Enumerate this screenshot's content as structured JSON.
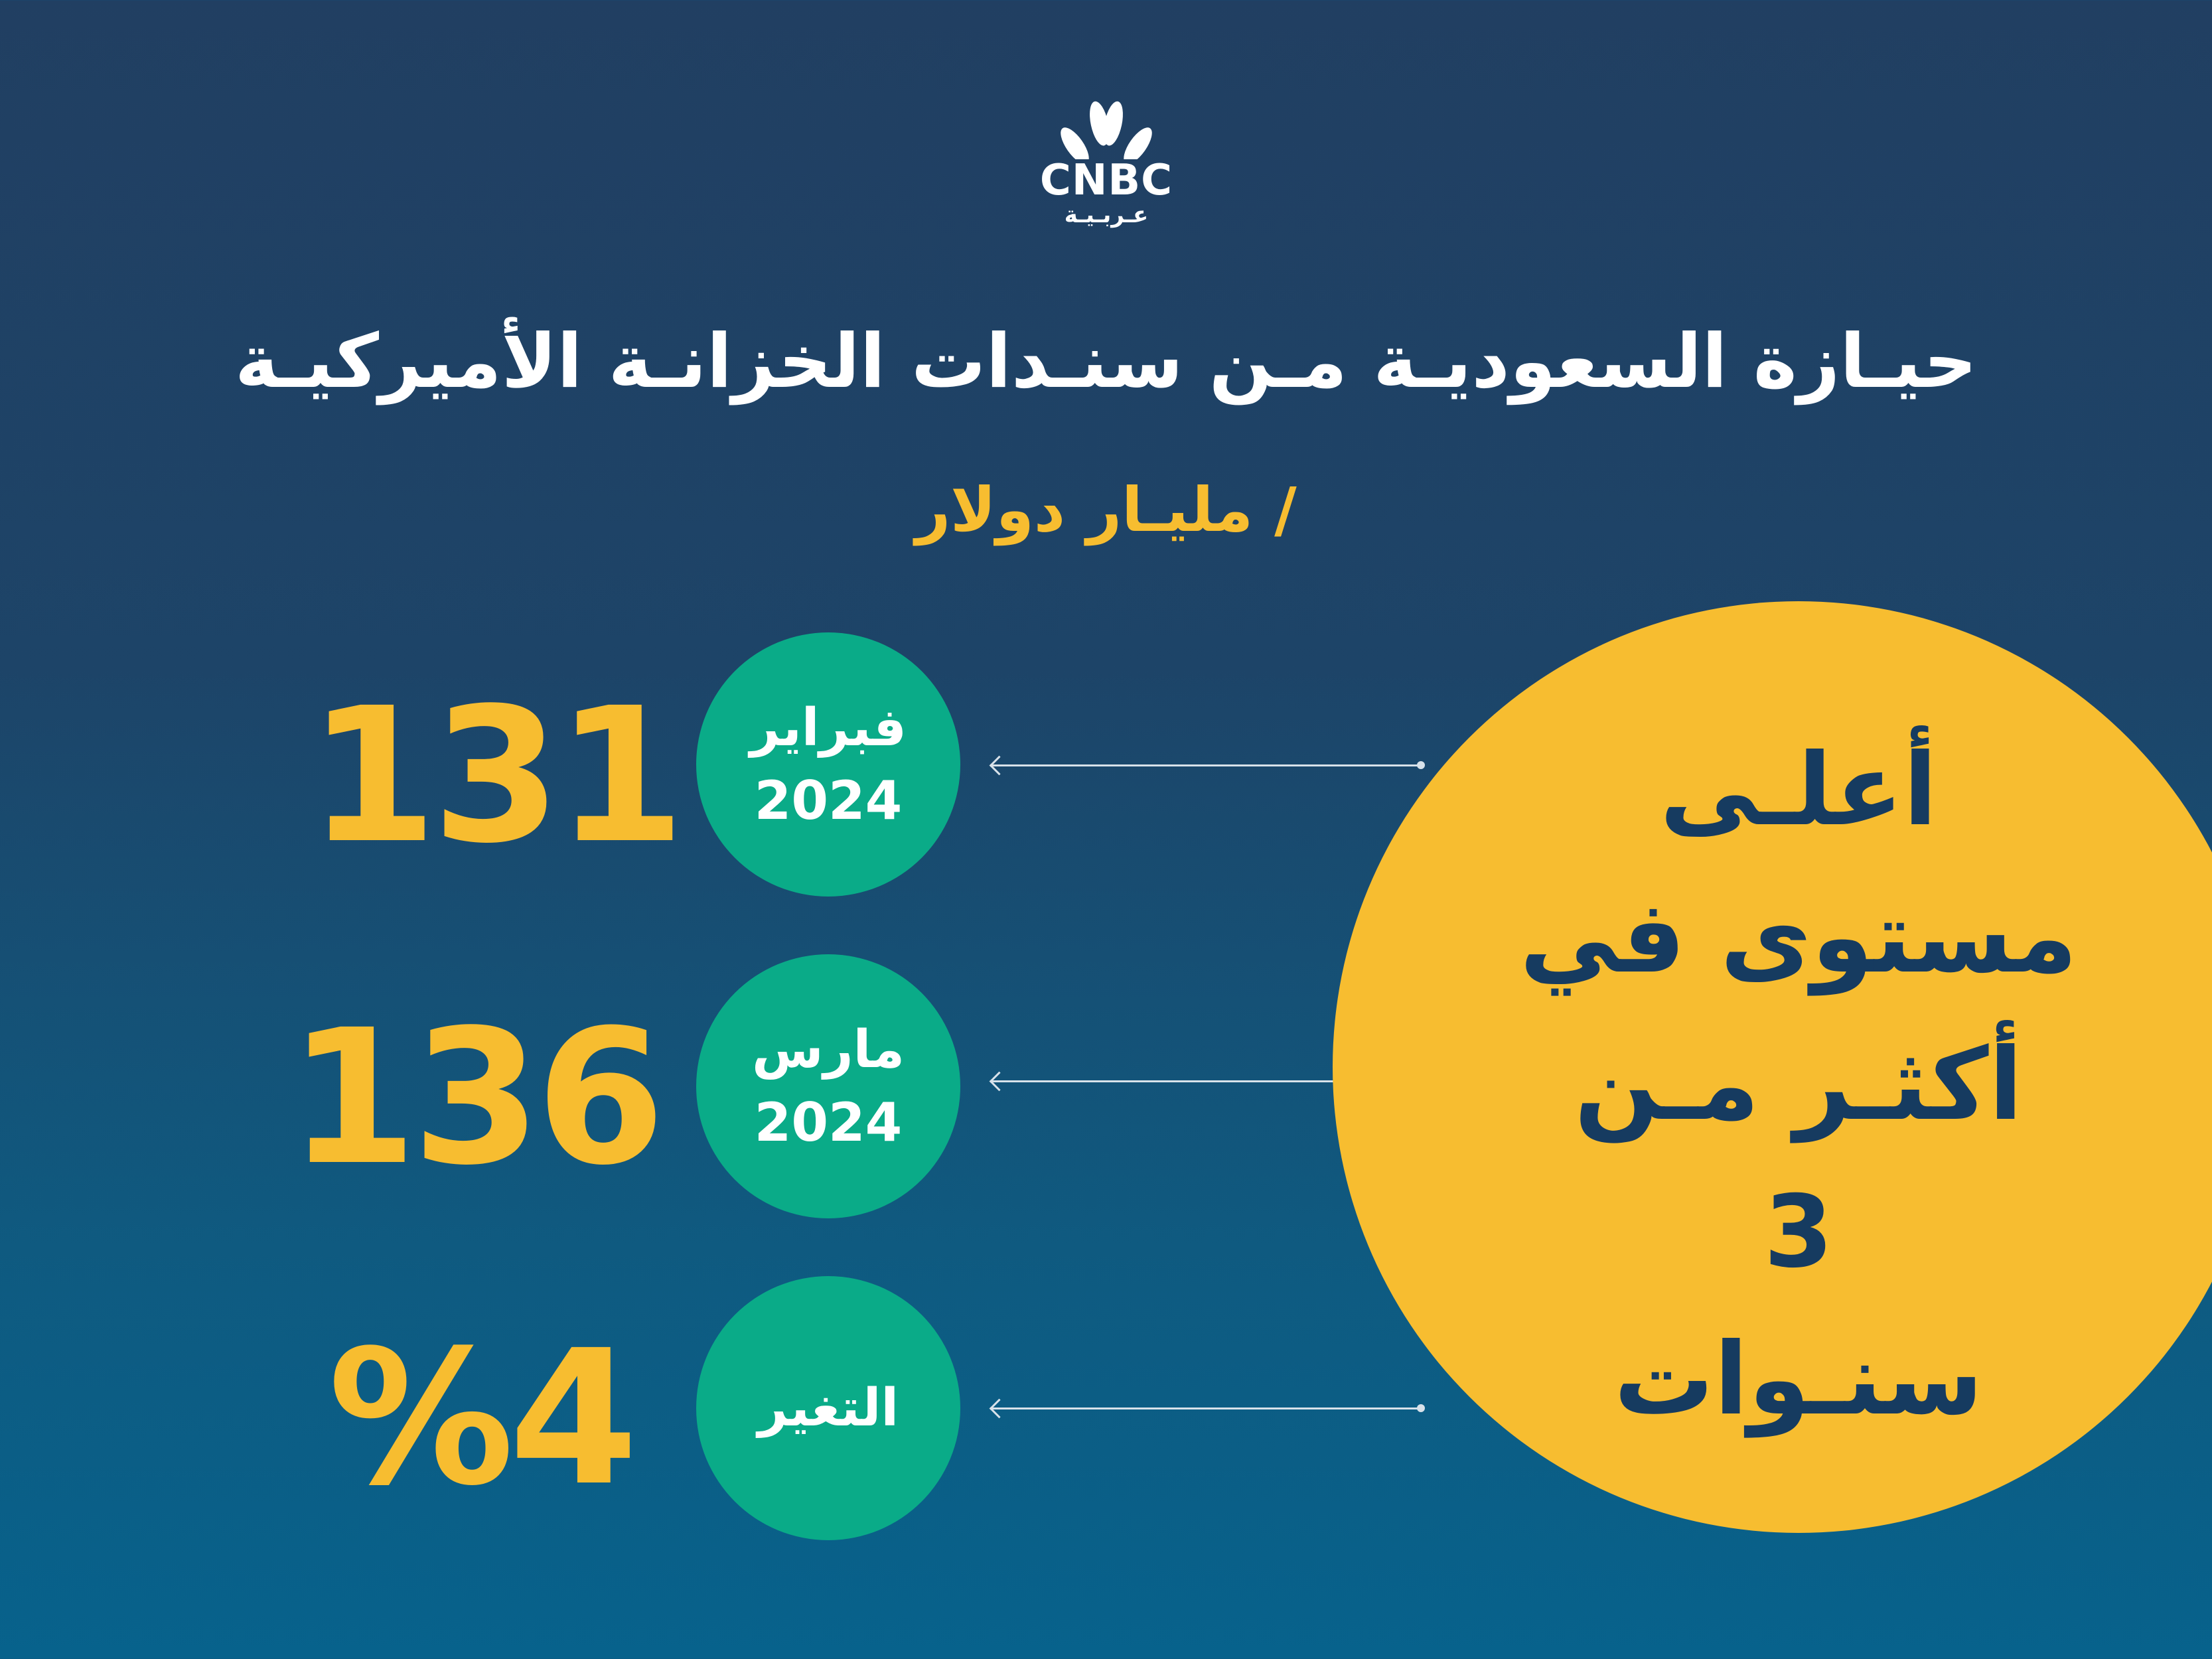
{
  "logo": {
    "brand": "CNBC",
    "arabic": "عـربـيـة"
  },
  "title": "حيـازة السعوديـة مـن سنـدات الخزانـة الأميركيـة",
  "subtitle": "/ مليـار دولار",
  "rows": [
    {
      "label": "فبراير",
      "year": "2024",
      "value": "131"
    },
    {
      "label": "مارس",
      "year": "2024",
      "value": "136"
    },
    {
      "label": "التغير",
      "year": "",
      "value": "%4"
    }
  ],
  "highlight": {
    "lines": [
      "أعلـى",
      "مستوى في",
      "أكثـر مـن",
      "3",
      "سنـوات"
    ]
  },
  "colors": {
    "accent_yellow": "#f7bd30",
    "accent_green": "#0aab88",
    "text_navy": "#163b60"
  }
}
